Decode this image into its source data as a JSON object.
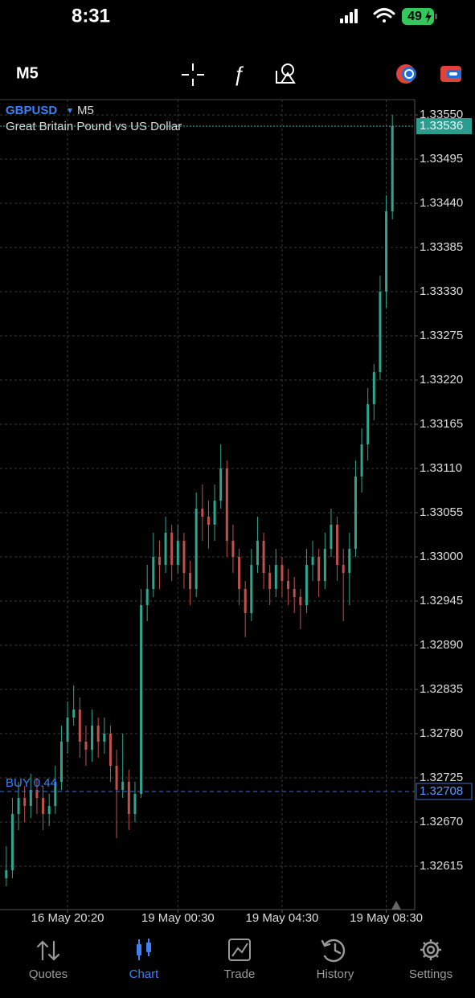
{
  "status_bar": {
    "time": "8:31",
    "battery": "49"
  },
  "toolbar": {
    "timeframe": "M5"
  },
  "chart_data": {
    "type": "candlestick",
    "symbol": "GBPUSD",
    "timeframe": "M5",
    "description": "Great Britain Pound vs US Dollar",
    "up_color": "#2fa58f",
    "down_color": "#c0504d",
    "grid": true,
    "open": [
      1.326,
      1.3261,
      1.3268,
      1.327,
      1.3269,
      1.3271,
      1.327,
      1.3268,
      1.3269,
      1.3272,
      1.3277,
      1.328,
      1.3281,
      1.3277,
      1.3276,
      1.3279,
      1.3277,
      1.3278,
      1.3274,
      1.3271,
      1.3272,
      1.3268,
      1.32705,
      1.3294,
      1.3296,
      1.33,
      1.3299,
      1.3303,
      1.3299,
      1.3302,
      1.3298,
      1.3296,
      1.3306,
      1.3305,
      1.3304,
      1.3307,
      1.3311,
      1.3302,
      1.33,
      1.3296,
      1.3293,
      1.3299,
      1.3302,
      1.3298,
      1.3296,
      1.3299,
      1.3297,
      1.3296,
      1.3295,
      1.3294,
      1.3299,
      1.33,
      1.3297,
      1.3301,
      1.3304,
      1.3299,
      1.3298,
      1.3301,
      1.331,
      1.3314,
      1.3319,
      1.3323,
      1.3333,
      1.3343
    ],
    "high": [
      1.3264,
      1.327,
      1.3272,
      1.32715,
      1.3273,
      1.32725,
      1.32715,
      1.32705,
      1.3274,
      1.3279,
      1.3282,
      1.3284,
      1.32825,
      1.3279,
      1.3281,
      1.328,
      1.328,
      1.3279,
      1.3276,
      1.3278,
      1.32735,
      1.3272,
      1.3296,
      1.3299,
      1.3303,
      1.3302,
      1.3305,
      1.3304,
      1.3304,
      1.3303,
      1.32995,
      1.3308,
      1.3309,
      1.3307,
      1.3309,
      1.3314,
      1.3312,
      1.3304,
      1.3301,
      1.3297,
      1.3301,
      1.3305,
      1.3303,
      1.3299,
      1.3301,
      1.33,
      1.32985,
      1.32975,
      1.3296,
      1.3301,
      1.3302,
      1.3301,
      1.3303,
      1.3306,
      1.3305,
      1.3301,
      1.3303,
      1.3312,
      1.3316,
      1.3321,
      1.3324,
      1.3335,
      1.3345,
      1.3355
    ],
    "low": [
      1.3259,
      1.326,
      1.3266,
      1.3267,
      1.32675,
      1.3268,
      1.3266,
      1.32665,
      1.3268,
      1.3271,
      1.32755,
      1.3279,
      1.3275,
      1.3274,
      1.32745,
      1.3275,
      1.32755,
      1.3272,
      1.3265,
      1.327,
      1.3266,
      1.3267,
      1.327,
      1.3292,
      1.3295,
      1.3296,
      1.3298,
      1.3297,
      1.3298,
      1.3296,
      1.3294,
      1.3295,
      1.3302,
      1.3301,
      1.3302,
      1.3306,
      1.33,
      1.3298,
      1.3294,
      1.329,
      1.3292,
      1.3298,
      1.3296,
      1.3294,
      1.3295,
      1.3295,
      1.3294,
      1.3293,
      1.3291,
      1.3293,
      1.3297,
      1.3295,
      1.3296,
      1.33,
      1.3297,
      1.3292,
      1.3294,
      1.33,
      1.3308,
      1.3312,
      1.3317,
      1.3322,
      1.3331,
      1.3342
    ],
    "close": [
      1.3261,
      1.3268,
      1.327,
      1.3269,
      1.3271,
      1.327,
      1.3268,
      1.3269,
      1.3272,
      1.3277,
      1.328,
      1.3281,
      1.3277,
      1.3276,
      1.3279,
      1.3277,
      1.3278,
      1.3274,
      1.3271,
      1.3272,
      1.3268,
      1.32705,
      1.3294,
      1.3296,
      1.33,
      1.3299,
      1.3303,
      1.3299,
      1.3302,
      1.3298,
      1.3296,
      1.3306,
      1.3305,
      1.3304,
      1.3307,
      1.3311,
      1.3302,
      1.33,
      1.3296,
      1.3293,
      1.3299,
      1.3302,
      1.3298,
      1.3296,
      1.3299,
      1.3297,
      1.3296,
      1.3295,
      1.3294,
      1.3299,
      1.33,
      1.3297,
      1.3301,
      1.3304,
      1.3299,
      1.3298,
      1.3301,
      1.331,
      1.3314,
      1.3319,
      1.3323,
      1.3333,
      1.3343,
      1.33536
    ],
    "ylim": [
      1.32561,
      1.33569
    ],
    "yticks": [
      {
        "value": 1.3355,
        "label": "1.33550"
      },
      {
        "value": 1.33495,
        "label": "1.33495"
      },
      {
        "value": 1.3344,
        "label": "1.33440"
      },
      {
        "value": 1.33385,
        "label": "1.33385"
      },
      {
        "value": 1.3333,
        "label": "1.33330"
      },
      {
        "value": 1.33275,
        "label": "1.33275"
      },
      {
        "value": 1.3322,
        "label": "1.33220"
      },
      {
        "value": 1.33165,
        "label": "1.33165"
      },
      {
        "value": 1.3311,
        "label": "1.33110"
      },
      {
        "value": 1.33055,
        "label": "1.33055"
      },
      {
        "value": 1.33,
        "label": "1.33000"
      },
      {
        "value": 1.32945,
        "label": "1.32945"
      },
      {
        "value": 1.3289,
        "label": "1.32890"
      },
      {
        "value": 1.32835,
        "label": "1.32835"
      },
      {
        "value": 1.3278,
        "label": "1.32780"
      },
      {
        "value": 1.32725,
        "label": "1.32725"
      },
      {
        "value": 1.3267,
        "label": "1.32670"
      },
      {
        "value": 1.32615,
        "label": "1.32615"
      }
    ],
    "xticks": [
      {
        "value": 10,
        "label": "16 May 20:20"
      },
      {
        "value": 28,
        "label": "19 May 00:30"
      },
      {
        "value": 45,
        "label": "19 May 04:30"
      },
      {
        "value": 62,
        "label": "19 May 08:30"
      }
    ],
    "bid": {
      "value": 1.33536,
      "label": "1.33536"
    },
    "position": {
      "text": "BUY 0.44",
      "value": 1.32708,
      "label": "1.32708"
    }
  },
  "tab_bar": {
    "tabs": [
      "Quotes",
      "Chart",
      "Trade",
      "History",
      "Settings"
    ],
    "active": 1
  }
}
